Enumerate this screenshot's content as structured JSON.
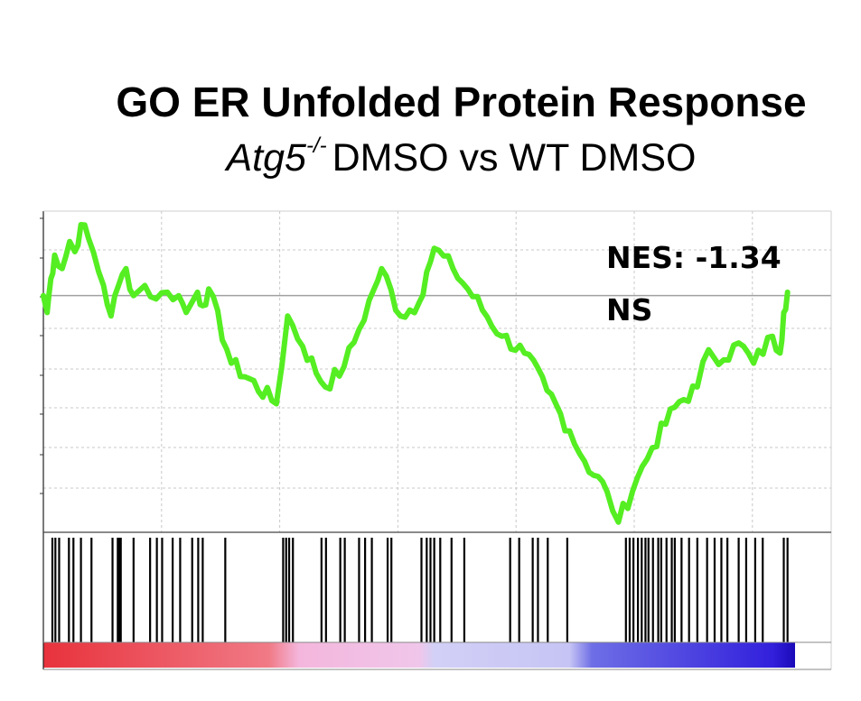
{
  "title": "GO ER Unfolded Protein Response",
  "subtitle": {
    "gene": "Atg5",
    "superscript": "-/-",
    "rest": "DMSO vs WT DMSO"
  },
  "annotations": {
    "nes": "NES: -1.34",
    "significance": "NS"
  },
  "colors": {
    "curve": "#55ee22",
    "grid": "#c8c8c8",
    "baseline": "#a0a0a0",
    "hits": "#000000",
    "gradient": [
      "#e8323c",
      "#f07a86",
      "#f4b6dc",
      "#d2d0f6",
      "#6e6ee6",
      "#2810d0"
    ]
  },
  "chart_data": {
    "type": "line",
    "title": "GO ER Unfolded Protein Response",
    "subtitle": "Atg5-/- DMSO vs WT DMSO",
    "xlabel": "",
    "ylabel": "",
    "grid": true,
    "x_range": [
      0,
      1
    ],
    "y_range": [
      -0.7,
      0.25
    ],
    "series": [
      {
        "values": [
          [
            0.0,
            0.0
          ],
          [
            0.005,
            -0.05
          ],
          [
            0.01,
            0.05
          ],
          [
            0.015,
            0.12
          ],
          [
            0.025,
            0.08
          ],
          [
            0.035,
            0.16
          ],
          [
            0.042,
            0.13
          ],
          [
            0.05,
            0.21
          ],
          [
            0.06,
            0.17
          ],
          [
            0.08,
            0.03
          ],
          [
            0.09,
            -0.06
          ],
          [
            0.1,
            0.03
          ],
          [
            0.11,
            0.08
          ],
          [
            0.12,
            0.0
          ],
          [
            0.135,
            0.03
          ],
          [
            0.15,
            -0.01
          ],
          [
            0.165,
            0.01
          ],
          [
            0.18,
            0.0
          ],
          [
            0.19,
            -0.05
          ],
          [
            0.205,
            0.01
          ],
          [
            0.212,
            -0.03
          ],
          [
            0.22,
            0.02
          ],
          [
            0.25,
            -0.2
          ],
          [
            0.31,
            -0.32
          ],
          [
            0.325,
            -0.06
          ],
          [
            0.345,
            -0.15
          ],
          [
            0.375,
            -0.27
          ],
          [
            0.4,
            -0.21
          ],
          [
            0.42,
            -0.1
          ],
          [
            0.44,
            0.02
          ],
          [
            0.45,
            0.08
          ],
          [
            0.475,
            -0.06
          ],
          [
            0.5,
            -0.02
          ],
          [
            0.51,
            0.07
          ],
          [
            0.52,
            0.14
          ],
          [
            0.545,
            0.08
          ],
          [
            0.61,
            -0.12
          ],
          [
            0.64,
            -0.17
          ],
          [
            0.67,
            -0.28
          ],
          [
            0.7,
            -0.4
          ],
          [
            0.72,
            -0.49
          ],
          [
            0.75,
            -0.58
          ],
          [
            0.765,
            -0.67
          ],
          [
            0.79,
            -0.54
          ],
          [
            0.81,
            -0.45
          ],
          [
            0.84,
            -0.33
          ],
          [
            0.87,
            -0.27
          ],
          [
            0.885,
            -0.16
          ],
          [
            0.905,
            -0.19
          ],
          [
            0.925,
            -0.14
          ],
          [
            0.945,
            -0.2
          ],
          [
            0.97,
            -0.12
          ],
          [
            0.98,
            -0.17
          ],
          [
            0.985,
            -0.05
          ],
          [
            0.99,
            0.01
          ]
        ]
      }
    ],
    "hits": [
      0.012,
      0.016,
      0.021,
      0.034,
      0.04,
      0.05,
      0.064,
      0.092,
      0.099,
      0.101,
      0.103,
      0.12,
      0.142,
      0.151,
      0.158,
      0.172,
      0.182,
      0.198,
      0.206,
      0.212,
      0.242,
      0.319,
      0.323,
      0.327,
      0.332,
      0.37,
      0.376,
      0.395,
      0.401,
      0.42,
      0.428,
      0.437,
      0.458,
      0.463,
      0.503,
      0.51,
      0.515,
      0.52,
      0.528,
      0.543,
      0.56,
      0.621,
      0.633,
      0.651,
      0.658,
      0.671,
      0.697,
      0.775,
      0.78,
      0.785,
      0.791,
      0.796,
      0.801,
      0.805,
      0.811,
      0.818,
      0.822,
      0.829,
      0.836,
      0.84,
      0.849,
      0.859,
      0.87,
      0.883,
      0.893,
      0.902,
      0.91,
      0.925,
      0.935,
      0.947,
      0.957,
      0.985,
      0.99
    ]
  }
}
